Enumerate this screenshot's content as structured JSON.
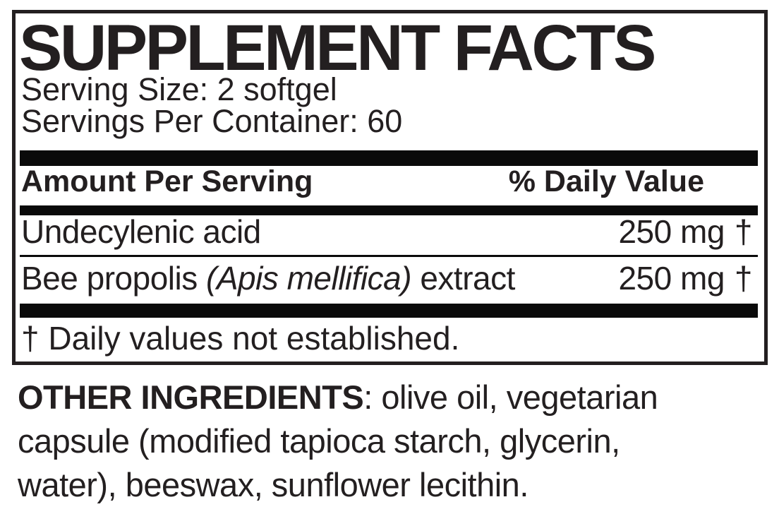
{
  "supplement_facts": {
    "title": "SUPPLEMENT FACTS",
    "serving_size": "Serving Size: 2 softgel",
    "servings_per_container": "Servings Per Container: 60",
    "columns": {
      "amount_per_serving": "Amount Per Serving",
      "percent_daily_value": "% Daily Value"
    },
    "rows": [
      {
        "name": "Undecylenic acid",
        "name_italic": "",
        "name_suffix": "",
        "amount": "250 mg",
        "daily_value_symbol": "†"
      },
      {
        "name": "Bee propolis ",
        "name_italic": "(Apis mellifica)",
        "name_suffix": " extract",
        "amount": "250 mg",
        "daily_value_symbol": "†"
      }
    ],
    "footnote": "† Daily values not established."
  },
  "other_ingredients": {
    "heading": "OTHER INGREDIENTS",
    "line1_rest": ": olive oil, vegetarian",
    "line2": "capsule (modified tapioca starch, glycerin,",
    "line3": "water), beeswax, sunflower lecithin."
  },
  "colors": {
    "text": "#231f20",
    "bar": "#0a0a0a",
    "border": "#231f20",
    "background": "#ffffff"
  }
}
